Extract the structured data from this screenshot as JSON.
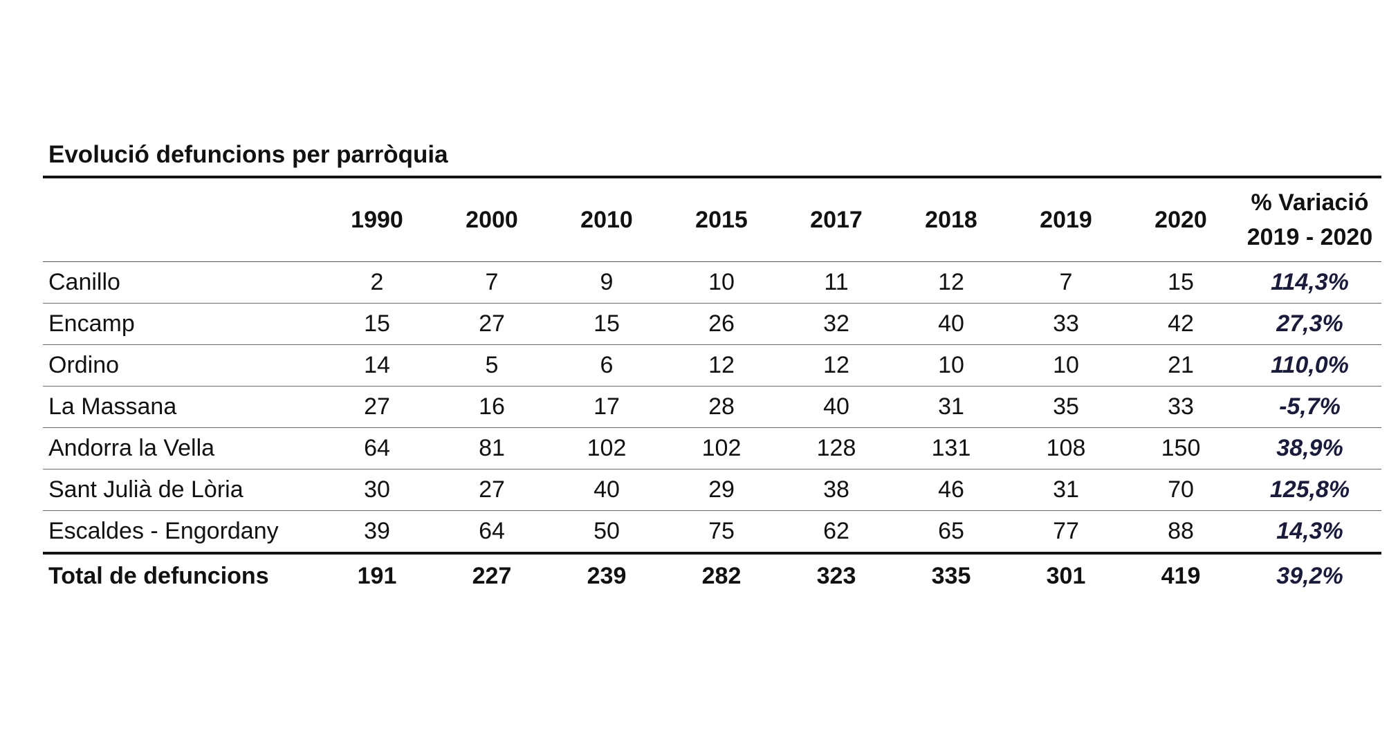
{
  "title": "Evolució defuncions per parròquia",
  "columns": {
    "name": "",
    "years": [
      "1990",
      "2000",
      "2010",
      "2015",
      "2017",
      "2018",
      "2019",
      "2020"
    ],
    "variation_line1": "% Variació",
    "variation_line2": "2019 - 2020"
  },
  "rows": [
    {
      "name": "Canillo",
      "values": [
        "2",
        "7",
        "9",
        "10",
        "11",
        "12",
        "7",
        "15"
      ],
      "variation": "114,3%"
    },
    {
      "name": "Encamp",
      "values": [
        "15",
        "27",
        "15",
        "26",
        "32",
        "40",
        "33",
        "42"
      ],
      "variation": "27,3%"
    },
    {
      "name": "Ordino",
      "values": [
        "14",
        "5",
        "6",
        "12",
        "12",
        "10",
        "10",
        "21"
      ],
      "variation": "110,0%"
    },
    {
      "name": "La Massana",
      "values": [
        "27",
        "16",
        "17",
        "28",
        "40",
        "31",
        "35",
        "33"
      ],
      "variation": "-5,7%"
    },
    {
      "name": "Andorra la Vella",
      "values": [
        "64",
        "81",
        "102",
        "102",
        "128",
        "131",
        "108",
        "150"
      ],
      "variation": "38,9%"
    },
    {
      "name": "Sant Julià de Lòria",
      "values": [
        "30",
        "27",
        "40",
        "29",
        "38",
        "46",
        "31",
        "70"
      ],
      "variation": "125,8%"
    },
    {
      "name": "Escaldes - Engordany",
      "values": [
        "39",
        "64",
        "50",
        "75",
        "62",
        "65",
        "77",
        "88"
      ],
      "variation": "14,3%"
    }
  ],
  "total": {
    "name": "Total de defuncions",
    "values": [
      "191",
      "227",
      "239",
      "282",
      "323",
      "335",
      "301",
      "419"
    ],
    "variation": "39,2%"
  }
}
